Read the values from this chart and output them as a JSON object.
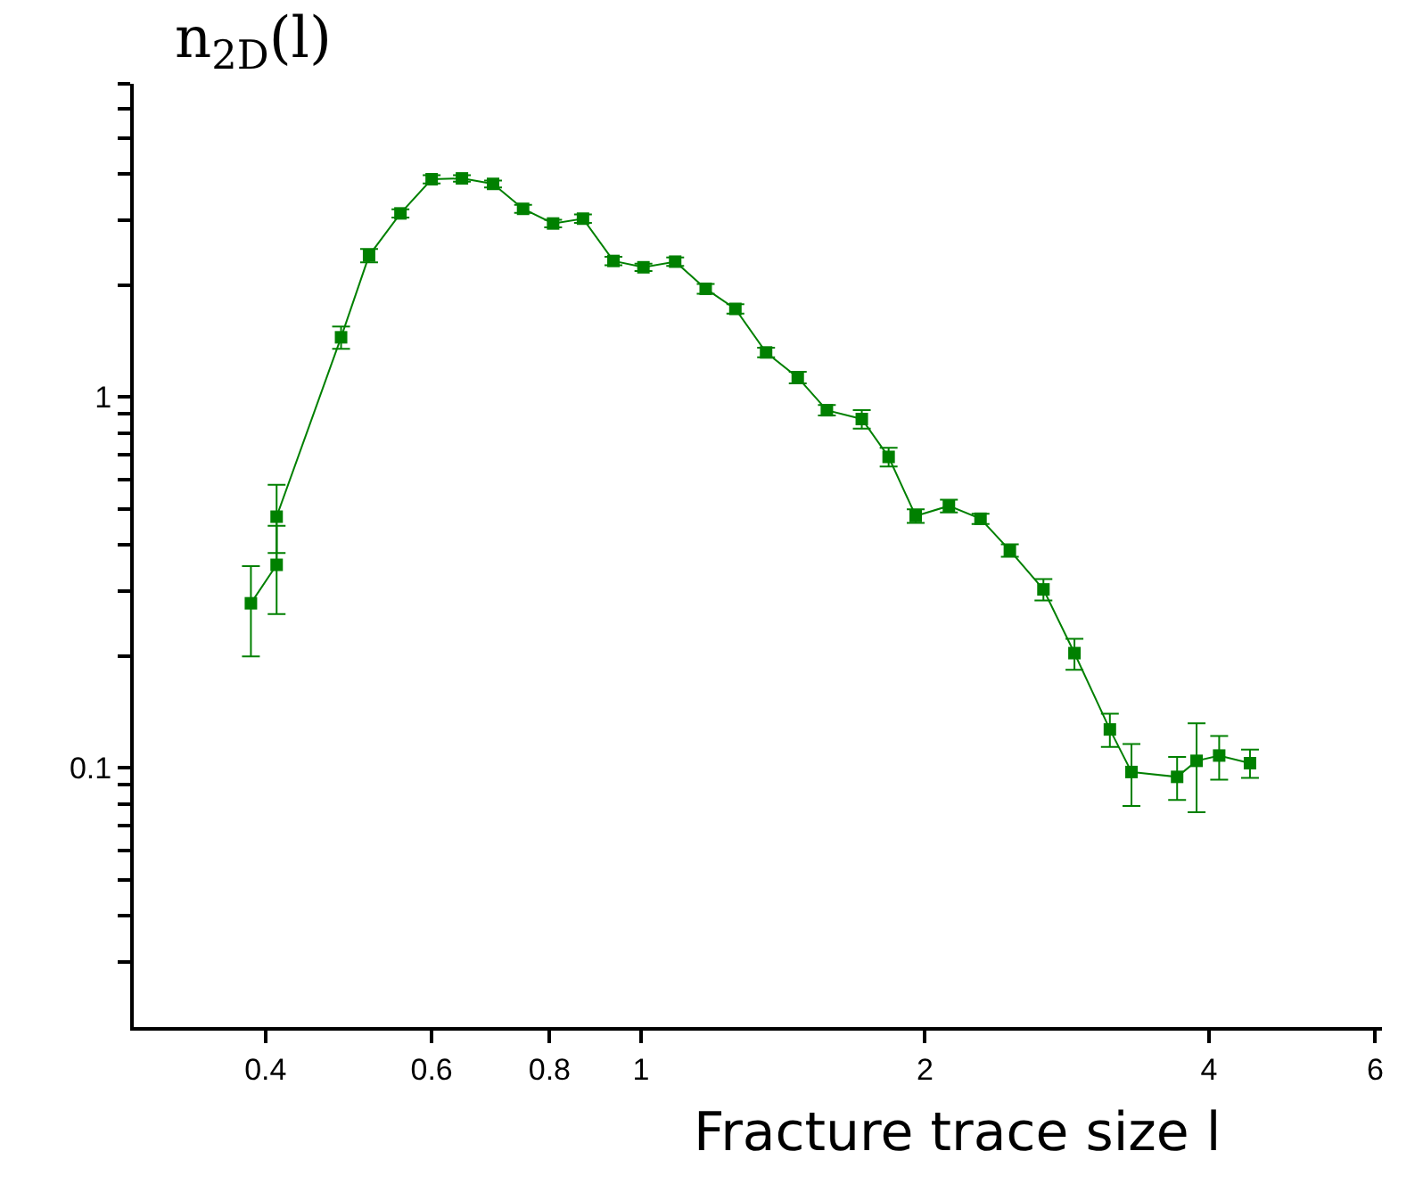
{
  "chart_data": {
    "type": "line",
    "xlabel": "Fracture trace size l",
    "ylabel": "n$_{2D}$(l)",
    "x": [
      0.386,
      0.411,
      0.411,
      0.481,
      0.515,
      0.556,
      0.6,
      0.646,
      0.697,
      0.75,
      0.807,
      0.868,
      0.935,
      1.006,
      1.087,
      1.171,
      1.259,
      1.357,
      1.466,
      1.574,
      1.714,
      1.83,
      1.955,
      2.12,
      2.29,
      2.46,
      2.67,
      2.88,
      3.14,
      3.31,
      3.7,
      3.88,
      4.1,
      4.42
    ],
    "series": [
      {
        "color": "#008000",
        "values": [
          0.278,
          0.353,
          0.476,
          1.45,
          2.41,
          3.13,
          3.87,
          3.89,
          3.76,
          3.22,
          2.94,
          3.03,
          2.33,
          2.24,
          2.32,
          1.96,
          1.73,
          1.32,
          1.13,
          0.922,
          0.873,
          0.69,
          0.478,
          0.509,
          0.47,
          0.386,
          0.303,
          0.204,
          0.127,
          0.0975,
          0.0946,
          0.1045,
          0.108,
          0.103
        ],
        "errors": [
          [
            0.2,
            0.35
          ],
          [
            0.26,
            0.45
          ],
          [
            0.38,
            0.58
          ],
          0.1,
          0.1,
          0.08,
          0.1,
          0.08,
          0.08,
          0.08,
          0.07,
          0.08,
          0.06,
          0.05,
          0.06,
          0.06,
          0.05,
          0.04,
          0.04,
          0.03,
          0.05,
          0.04,
          0.02,
          0.02,
          0.015,
          0.015,
          0.02,
          [
            0.184,
            0.223
          ],
          [
            0.114,
            0.14
          ],
          [
            0.079,
            0.116
          ],
          [
            0.082,
            0.107
          ],
          [
            0.076,
            0.132
          ],
          [
            0.093,
            0.122
          ],
          [
            0.094,
            0.112
          ]
        ]
      }
    ],
    "log": "xy",
    "xlim": [
      0.29,
      6.1
    ],
    "ylim": [
      0.02,
      7
    ],
    "xticks": [
      0.4,
      0.6,
      0.8,
      1,
      2,
      4,
      6
    ],
    "yticks": [
      {
        "value": 0.03,
        "label": null
      },
      {
        "value": 0.04,
        "label": null
      },
      {
        "value": 0.05,
        "label": null
      },
      {
        "value": 0.06,
        "label": null
      },
      {
        "value": 0.07,
        "label": null
      },
      {
        "value": 0.08,
        "label": null
      },
      {
        "value": 0.09,
        "label": null
      },
      0.1,
      {
        "value": 0.2,
        "label": null
      },
      {
        "value": 0.3,
        "label": null
      },
      {
        "value": 0.4,
        "label": null
      },
      {
        "value": 0.5,
        "label": null
      },
      {
        "value": 0.6,
        "label": null
      },
      {
        "value": 0.7,
        "label": null
      },
      {
        "value": 0.8,
        "label": null
      },
      {
        "value": 0.9,
        "label": null
      },
      1,
      {
        "value": 2,
        "label": null
      },
      {
        "value": 3,
        "label": null
      },
      {
        "value": 4,
        "label": null
      },
      {
        "value": 5,
        "label": null
      },
      {
        "value": 6,
        "label": null
      },
      {
        "value": 7,
        "label": null
      }
    ],
    "marker": "square",
    "line_style": "solid",
    "grid": false
  }
}
